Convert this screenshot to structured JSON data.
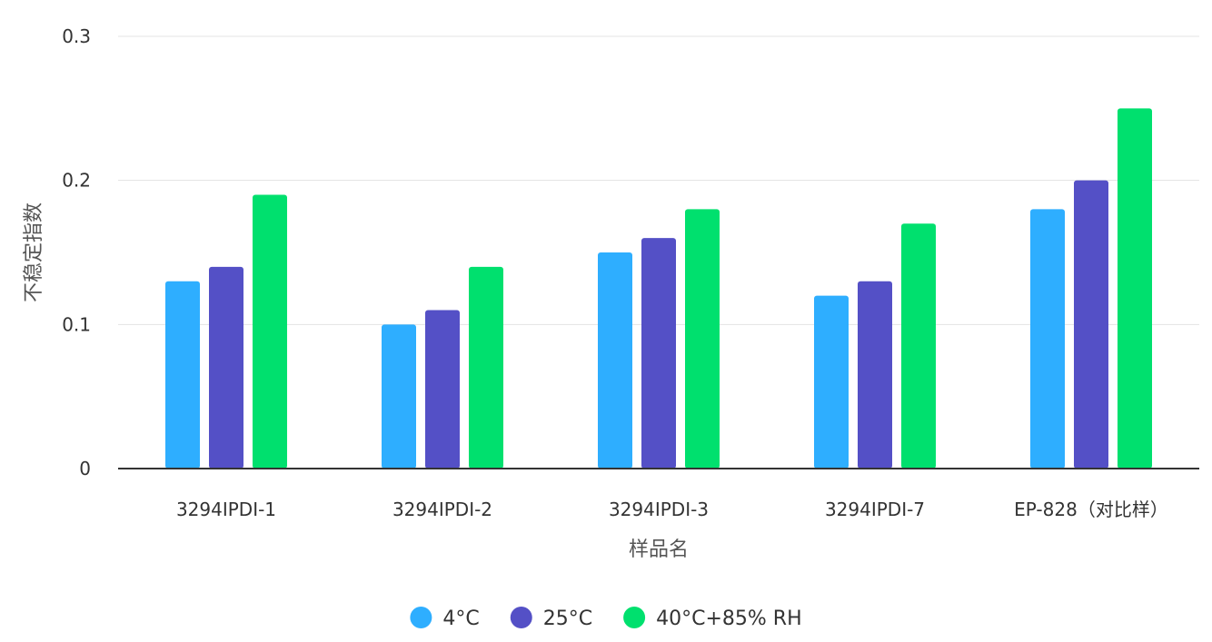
{
  "chart_data": {
    "type": "bar",
    "categories": [
      "3294IPDI-1",
      "3294IPDI-2",
      "3294IPDI-3",
      "3294IPDI-7",
      "EP-828（对比样）"
    ],
    "series": [
      {
        "name": "4°C",
        "color": "#2eaeff",
        "values": [
          0.13,
          0.1,
          0.15,
          0.12,
          0.18
        ]
      },
      {
        "name": "25°C",
        "color": "#5450c6",
        "values": [
          0.14,
          0.11,
          0.16,
          0.13,
          0.2
        ]
      },
      {
        "name": "40°C+85% RH",
        "color": "#00e06e",
        "values": [
          0.19,
          0.14,
          0.18,
          0.17,
          0.25
        ]
      }
    ],
    "xlabel": "样品名",
    "ylabel": "不稳定指数",
    "ylim": [
      0,
      0.3
    ],
    "yticks": [
      "0",
      "0.1",
      "0.2",
      "0.3"
    ],
    "grid": true,
    "legend_position": "bottom"
  }
}
